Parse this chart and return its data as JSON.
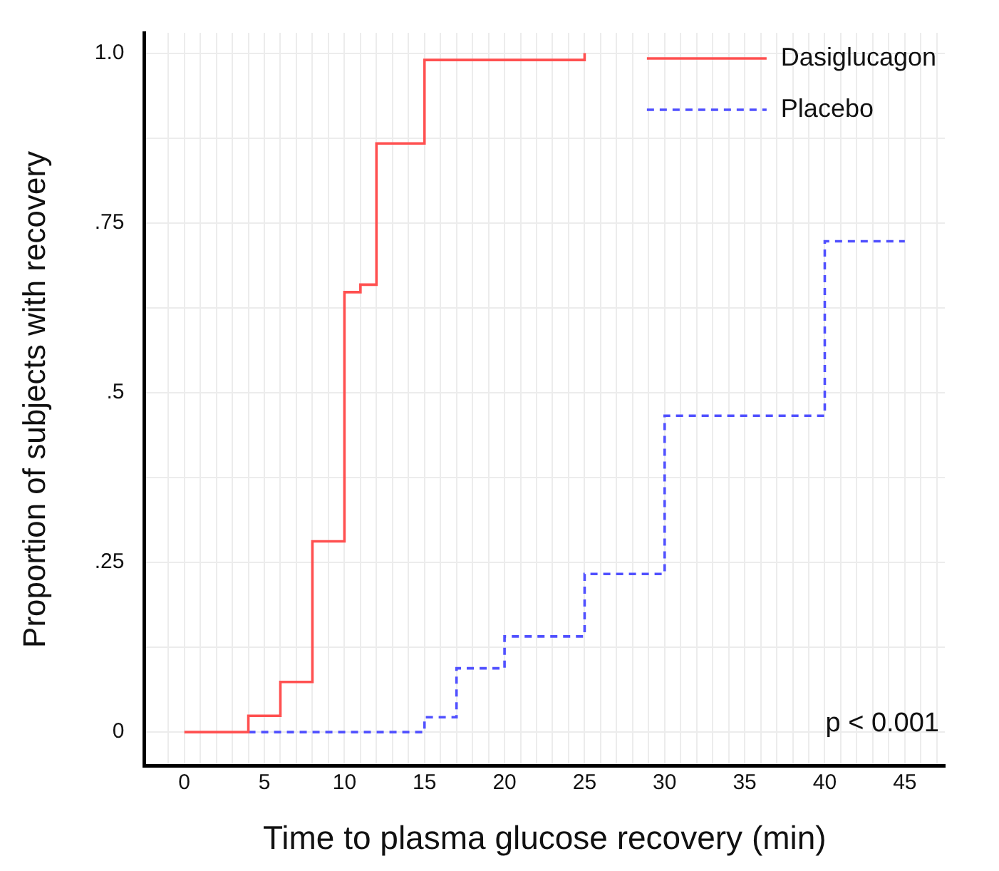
{
  "chart_data": {
    "type": "step",
    "xlabel": "Time to plasma glucose recovery (min)",
    "ylabel": "Proportion of subjects with recovery",
    "series": [
      {
        "name": "Dasiglucagon",
        "color": "#ff5050",
        "line_style": "solid",
        "x": [
          0,
          4,
          6,
          8,
          10,
          11,
          12,
          15,
          25
        ],
        "values": [
          0,
          0.024,
          0.074,
          0.281,
          0.648,
          0.659,
          0.867,
          0.99,
          1.0
        ]
      },
      {
        "name": "Placebo",
        "color": "#5050ff",
        "line_style": "dashed",
        "x": [
          4,
          15,
          17,
          20,
          25,
          30,
          40,
          45
        ],
        "values": [
          0,
          0.022,
          0.094,
          0.141,
          0.233,
          0.466,
          0.723,
          0.723
        ]
      }
    ],
    "xlim": [
      -2.5,
      47.5
    ],
    "xticks": [
      {
        "value": -1,
        "label": null
      },
      0,
      {
        "value": 1,
        "label": null
      },
      {
        "value": 2,
        "label": null
      },
      {
        "value": 3,
        "label": null
      },
      {
        "value": 4,
        "label": null
      },
      5,
      {
        "value": 6,
        "label": null
      },
      {
        "value": 7,
        "label": null
      },
      {
        "value": 8,
        "label": null
      },
      {
        "value": 9,
        "label": null
      },
      10,
      {
        "value": 11,
        "label": null
      },
      {
        "value": 12,
        "label": null
      },
      {
        "value": 13,
        "label": null
      },
      {
        "value": 14,
        "label": null
      },
      15,
      {
        "value": 16,
        "label": null
      },
      {
        "value": 17,
        "label": null
      },
      {
        "value": 18,
        "label": null
      },
      {
        "value": 19,
        "label": null
      },
      20,
      {
        "value": 21,
        "label": null
      },
      {
        "value": 22,
        "label": null
      },
      {
        "value": 23,
        "label": null
      },
      {
        "value": 24,
        "label": null
      },
      25,
      {
        "value": 26,
        "label": null
      },
      {
        "value": 27,
        "label": null
      },
      {
        "value": 28,
        "label": null
      },
      {
        "value": 29,
        "label": null
      },
      30,
      {
        "value": 31,
        "label": null
      },
      {
        "value": 32,
        "label": null
      },
      {
        "value": 33,
        "label": null
      },
      {
        "value": 34,
        "label": null
      },
      35,
      {
        "value": 36,
        "label": null
      },
      {
        "value": 37,
        "label": null
      },
      {
        "value": 38,
        "label": null
      },
      {
        "value": 39,
        "label": null
      },
      40,
      {
        "value": 41,
        "label": null
      },
      {
        "value": 42,
        "label": null
      },
      {
        "value": 43,
        "label": null
      },
      {
        "value": 44,
        "label": null
      },
      45,
      {
        "value": 46,
        "label": null
      },
      {
        "value": 47,
        "label": null
      }
    ],
    "ylim": [
      -0.05,
      1.03
    ],
    "yticks": [
      {
        "value": 0,
        "label": "0"
      },
      {
        "value": 0.125,
        "label": null
      },
      {
        "value": 0.25,
        "label": ".25"
      },
      {
        "value": 0.375,
        "label": null
      },
      {
        "value": 0.5,
        "label": ".5"
      },
      {
        "value": 0.625,
        "label": null
      },
      {
        "value": 0.75,
        "label": ".75"
      },
      {
        "value": 0.875,
        "label": null
      },
      {
        "value": 1,
        "label": "1.0"
      }
    ],
    "grid": true,
    "legend": "top right",
    "marker": "none",
    "annotations": [
      "p < 0.001"
    ]
  }
}
